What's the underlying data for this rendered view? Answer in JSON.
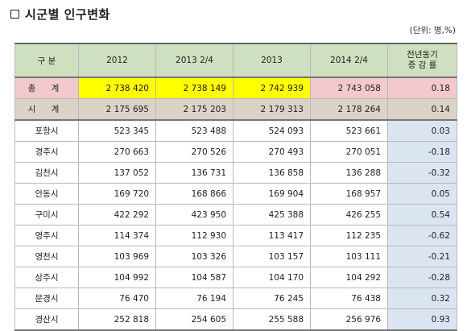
{
  "title": "시군별 인구변화",
  "unit": "(단위: 명,%)",
  "headers": {
    "category": "구  분",
    "y2012": "2012",
    "y2013q2": "2013 2/4",
    "y2013": "2013",
    "y2014q2": "2014 2/4",
    "rate_line1": "전년동기",
    "rate_line2": "증 감 률"
  },
  "total": {
    "label": "총 계",
    "v2012": "2 738 420",
    "v2013q2": "2 738 149",
    "v2013": "2 742 939",
    "v2014q2": "2 743 058",
    "rate": "0.18"
  },
  "city_total": {
    "label": "시 계",
    "v2012": "2 175 695",
    "v2013q2": "2 175 203",
    "v2013": "2 179 313",
    "v2014q2": "2 178 264",
    "rate": "0.14"
  },
  "rows": [
    {
      "label": "포항시",
      "v2012": "523 345",
      "v2013q2": "523 488",
      "v2013": "524 093",
      "v2014q2": "523 661",
      "rate": "0.03"
    },
    {
      "label": "경주시",
      "v2012": "270 663",
      "v2013q2": "270 526",
      "v2013": "270 493",
      "v2014q2": "270 051",
      "rate": "-0.18"
    },
    {
      "label": "김천시",
      "v2012": "137 052",
      "v2013q2": "136 731",
      "v2013": "136 858",
      "v2014q2": "136 288",
      "rate": "-0.32"
    },
    {
      "label": "안동시",
      "v2012": "169 720",
      "v2013q2": "168 866",
      "v2013": "169 904",
      "v2014q2": "168 957",
      "rate": "0.05"
    },
    {
      "label": "구미시",
      "v2012": "422 292",
      "v2013q2": "423 950",
      "v2013": "425 388",
      "v2014q2": "426 255",
      "rate": "0.54"
    },
    {
      "label": "영주시",
      "v2012": "114 374",
      "v2013q2": "112 930",
      "v2013": "113 417",
      "v2014q2": "112 235",
      "rate": "-0.62"
    },
    {
      "label": "영천시",
      "v2012": "103 969",
      "v2013q2": "103 326",
      "v2013": "103 157",
      "v2014q2": "103 111",
      "rate": "-0.21"
    },
    {
      "label": "상주시",
      "v2012": "104 992",
      "v2013q2": "104 587",
      "v2013": "104 170",
      "v2014q2": "104 292",
      "rate": "-0.28"
    },
    {
      "label": "문경시",
      "v2012": "76 470",
      "v2013q2": "76 194",
      "v2013": "76 245",
      "v2014q2": "76 438",
      "rate": "0.32"
    },
    {
      "label": "경산시",
      "v2012": "252 818",
      "v2013q2": "254 605",
      "v2013": "255 588",
      "v2014q2": "256 976",
      "rate": "0.93"
    }
  ]
}
